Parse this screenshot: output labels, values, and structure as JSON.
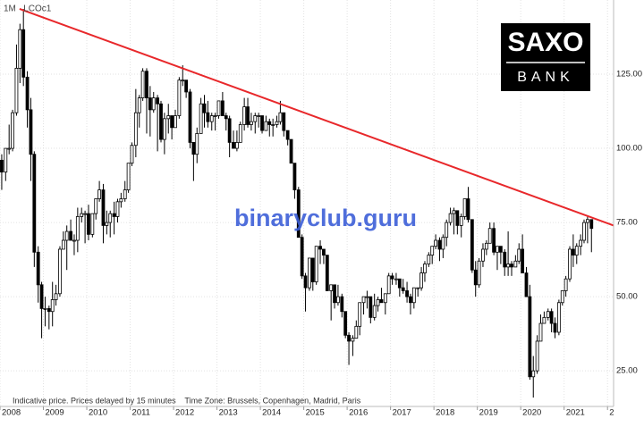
{
  "chart_data": {
    "type": "candlestick",
    "symbol": "1M   LCOc1",
    "note": "Indicative price. Prices delayed by 15 minutes    Time Zone: Brussels, Copenhagen, Madrid, Paris",
    "watermark": "binaryclub.guru",
    "logo": {
      "top": "SAXO",
      "bottom": "BANK"
    },
    "xlim": [
      2008,
      2022.14
    ],
    "ylim": [
      13,
      150
    ],
    "xticks": [
      2008,
      2009,
      2010,
      2011,
      2012,
      2013,
      2014,
      2015,
      2016,
      2017,
      2018,
      2019,
      2020,
      2021,
      {
        "value": 2022,
        "label": "2"
      }
    ],
    "yticks": [
      {
        "value": 25,
        "label": "25.00"
      },
      {
        "value": 50,
        "label": "50.00"
      },
      {
        "value": 75,
        "label": "75.00"
      },
      {
        "value": 100,
        "label": "100.00"
      },
      {
        "value": 125,
        "label": "125.00"
      }
    ],
    "grid": true,
    "up_color": "#ffffff",
    "down_color": "#000000",
    "trendline": {
      "x": [
        2008.45,
        2022.14
      ],
      "y": [
        147,
        74
      ],
      "color": "#e8282b"
    },
    "x": [
      2008.04,
      2008.13,
      2008.21,
      2008.29,
      2008.38,
      2008.46,
      2008.54,
      2008.63,
      2008.71,
      2008.79,
      2008.88,
      2008.96,
      2009.04,
      2009.13,
      2009.21,
      2009.29,
      2009.38,
      2009.46,
      2009.54,
      2009.63,
      2009.71,
      2009.79,
      2009.88,
      2009.96,
      2010.04,
      2010.13,
      2010.21,
      2010.29,
      2010.38,
      2010.46,
      2010.54,
      2010.63,
      2010.71,
      2010.79,
      2010.88,
      2010.96,
      2011.04,
      2011.13,
      2011.21,
      2011.29,
      2011.38,
      2011.46,
      2011.54,
      2011.63,
      2011.71,
      2011.79,
      2011.88,
      2011.96,
      2012.04,
      2012.13,
      2012.21,
      2012.29,
      2012.38,
      2012.46,
      2012.54,
      2012.63,
      2012.71,
      2012.79,
      2012.88,
      2012.96,
      2013.04,
      2013.13,
      2013.21,
      2013.29,
      2013.38,
      2013.46,
      2013.54,
      2013.63,
      2013.71,
      2013.79,
      2013.88,
      2013.96,
      2014.04,
      2014.13,
      2014.21,
      2014.29,
      2014.38,
      2014.46,
      2014.54,
      2014.63,
      2014.71,
      2014.79,
      2014.88,
      2014.96,
      2015.04,
      2015.13,
      2015.21,
      2015.29,
      2015.38,
      2015.46,
      2015.54,
      2015.63,
      2015.71,
      2015.79,
      2015.88,
      2015.96,
      2016.04,
      2016.13,
      2016.21,
      2016.29,
      2016.38,
      2016.46,
      2016.54,
      2016.63,
      2016.71,
      2016.79,
      2016.88,
      2016.96,
      2017.04,
      2017.13,
      2017.21,
      2017.29,
      2017.38,
      2017.46,
      2017.54,
      2017.63,
      2017.71,
      2017.79,
      2017.88,
      2017.96,
      2018.04,
      2018.13,
      2018.21,
      2018.29,
      2018.38,
      2018.46,
      2018.54,
      2018.63,
      2018.71,
      2018.79,
      2018.88,
      2018.96,
      2019.04,
      2019.13,
      2019.21,
      2019.29,
      2019.38,
      2019.46,
      2019.54,
      2019.63,
      2019.71,
      2019.79,
      2019.88,
      2019.96,
      2020.04,
      2020.13,
      2020.21,
      2020.29,
      2020.38,
      2020.46,
      2020.54,
      2020.63,
      2020.71,
      2020.79,
      2020.88,
      2020.96,
      2021.04,
      2021.13,
      2021.21,
      2021.29,
      2021.38,
      2021.46,
      2021.54,
      2021.63
    ],
    "ohlc": [
      [
        96,
        98,
        86,
        92
      ],
      [
        92,
        100,
        89,
        100
      ],
      [
        100,
        108,
        98,
        100
      ],
      [
        100,
        113,
        99,
        112
      ],
      [
        112,
        135,
        111,
        127
      ],
      [
        127,
        142,
        122,
        140
      ],
      [
        140,
        147,
        121,
        124
      ],
      [
        124,
        126,
        107,
        113
      ],
      [
        113,
        117,
        89,
        98
      ],
      [
        98,
        99,
        60,
        65
      ],
      [
        65,
        67,
        48,
        54
      ],
      [
        54,
        55,
        36,
        46
      ],
      [
        46,
        50,
        40,
        46
      ],
      [
        46,
        47,
        39,
        45
      ],
      [
        45,
        55,
        40,
        49
      ],
      [
        49,
        54,
        47,
        51
      ],
      [
        51,
        67,
        50,
        66
      ],
      [
        66,
        72,
        66,
        69
      ],
      [
        69,
        74,
        59,
        72
      ],
      [
        72,
        76,
        69,
        69
      ],
      [
        69,
        71,
        64,
        69
      ],
      [
        69,
        80,
        65,
        77
      ],
      [
        77,
        80,
        75,
        78
      ],
      [
        78,
        79,
        68,
        78
      ],
      [
        78,
        81,
        69,
        71
      ],
      [
        71,
        78,
        70,
        78
      ],
      [
        78,
        83,
        76,
        83
      ],
      [
        83,
        89,
        82,
        86
      ],
      [
        86,
        88,
        68,
        74
      ],
      [
        74,
        79,
        71,
        75
      ],
      [
        75,
        79,
        70,
        78
      ],
      [
        78,
        82,
        71,
        77
      ],
      [
        77,
        83,
        75,
        82
      ],
      [
        82,
        85,
        80,
        83
      ],
      [
        83,
        89,
        82,
        86
      ],
      [
        86,
        95,
        85,
        95
      ],
      [
        95,
        102,
        94,
        101
      ],
      [
        101,
        120,
        97,
        112
      ],
      [
        112,
        118,
        107,
        117
      ],
      [
        117,
        127,
        116,
        126
      ],
      [
        126,
        127,
        105,
        117
      ],
      [
        117,
        121,
        104,
        113
      ],
      [
        113,
        119,
        112,
        117
      ],
      [
        117,
        118,
        99,
        115
      ],
      [
        115,
        116,
        102,
        103
      ],
      [
        103,
        112,
        98,
        110
      ],
      [
        110,
        115,
        105,
        111
      ],
      [
        111,
        111,
        103,
        107
      ],
      [
        107,
        113,
        107,
        111
      ],
      [
        111,
        124,
        110,
        123
      ],
      [
        123,
        128,
        121,
        123
      ],
      [
        123,
        123,
        117,
        119
      ],
      [
        119,
        120,
        100,
        102
      ],
      [
        102,
        102,
        89,
        98
      ],
      [
        98,
        107,
        95,
        105
      ],
      [
        105,
        117,
        105,
        115
      ],
      [
        115,
        118,
        107,
        112
      ],
      [
        112,
        116,
        107,
        109
      ],
      [
        109,
        112,
        106,
        111
      ],
      [
        111,
        112,
        106,
        111
      ],
      [
        111,
        116,
        110,
        116
      ],
      [
        116,
        119,
        111,
        111
      ],
      [
        111,
        112,
        106,
        110
      ],
      [
        110,
        111,
        97,
        102
      ],
      [
        102,
        106,
        100,
        100
      ],
      [
        100,
        106,
        99,
        102
      ],
      [
        102,
        109,
        102,
        108
      ],
      [
        108,
        117,
        106,
        114
      ],
      [
        114,
        117,
        107,
        108
      ],
      [
        108,
        112,
        106,
        109
      ],
      [
        109,
        112,
        105,
        111
      ],
      [
        111,
        112,
        107,
        111
      ],
      [
        111,
        111,
        105,
        106
      ],
      [
        106,
        111,
        106,
        109
      ],
      [
        109,
        110,
        104,
        108
      ],
      [
        108,
        110,
        104,
        108
      ],
      [
        108,
        111,
        107,
        109
      ],
      [
        109,
        116,
        108,
        112
      ],
      [
        112,
        112,
        104,
        106
      ],
      [
        106,
        106,
        101,
        103
      ],
      [
        103,
        103,
        95,
        95
      ],
      [
        95,
        95,
        83,
        86
      ],
      [
        86,
        87,
        70,
        70
      ],
      [
        70,
        71,
        56,
        57
      ],
      [
        57,
        58,
        45,
        53
      ],
      [
        53,
        63,
        52,
        63
      ],
      [
        63,
        63,
        52,
        55
      ],
      [
        55,
        67,
        54,
        67
      ],
      [
        67,
        69,
        61,
        66
      ],
      [
        66,
        66,
        61,
        64
      ],
      [
        64,
        64,
        52,
        52
      ],
      [
        52,
        54,
        42,
        54
      ],
      [
        54,
        54,
        46,
        48
      ],
      [
        48,
        54,
        47,
        50
      ],
      [
        50,
        51,
        43,
        45
      ],
      [
        45,
        45,
        36,
        37
      ],
      [
        37,
        38,
        27,
        35
      ],
      [
        35,
        37,
        30,
        36
      ],
      [
        36,
        42,
        36,
        40
      ],
      [
        40,
        48,
        37,
        48
      ],
      [
        48,
        50,
        44,
        50
      ],
      [
        50,
        52,
        46,
        50
      ],
      [
        50,
        50,
        41,
        43
      ],
      [
        43,
        51,
        42,
        47
      ],
      [
        47,
        50,
        45,
        49
      ],
      [
        49,
        53,
        48,
        48
      ],
      [
        48,
        50,
        44,
        51
      ],
      [
        51,
        58,
        51,
        57
      ],
      [
        57,
        58,
        54,
        56
      ],
      [
        56,
        58,
        54,
        56
      ],
      [
        56,
        56,
        50,
        53
      ],
      [
        53,
        56,
        51,
        52
      ],
      [
        52,
        55,
        48,
        50
      ],
      [
        50,
        51,
        44,
        48
      ],
      [
        48,
        53,
        46,
        53
      ],
      [
        53,
        53,
        50,
        53
      ],
      [
        53,
        60,
        52,
        58
      ],
      [
        58,
        62,
        55,
        61
      ],
      [
        61,
        65,
        60,
        64
      ],
      [
        64,
        67,
        61,
        67
      ],
      [
        67,
        71,
        66,
        69
      ],
      [
        69,
        70,
        62,
        66
      ],
      [
        66,
        71,
        63,
        70
      ],
      [
        70,
        76,
        67,
        75
      ],
      [
        75,
        80,
        74,
        78
      ],
      [
        78,
        80,
        71,
        79
      ],
      [
        79,
        79,
        71,
        74
      ],
      [
        74,
        78,
        70,
        77
      ],
      [
        77,
        83,
        76,
        83
      ],
      [
        83,
        87,
        75,
        76
      ],
      [
        76,
        76,
        58,
        59
      ],
      [
        59,
        62,
        50,
        54
      ],
      [
        54,
        63,
        53,
        62
      ],
      [
        62,
        68,
        60,
        66
      ],
      [
        66,
        69,
        64,
        68
      ],
      [
        68,
        75,
        68,
        73
      ],
      [
        73,
        75,
        64,
        65
      ],
      [
        65,
        67,
        59,
        67
      ],
      [
        67,
        67,
        61,
        65
      ],
      [
        65,
        66,
        57,
        60
      ],
      [
        60,
        72,
        57,
        61
      ],
      [
        61,
        62,
        57,
        60
      ],
      [
        60,
        64,
        60,
        62
      ],
      [
        62,
        68,
        61,
        66
      ],
      [
        66,
        71,
        58,
        58
      ],
      [
        58,
        60,
        50,
        50
      ],
      [
        50,
        54,
        22,
        23
      ],
      [
        23,
        30,
        16,
        25
      ],
      [
        25,
        37,
        24,
        35
      ],
      [
        35,
        44,
        35,
        41
      ],
      [
        41,
        45,
        41,
        43
      ],
      [
        43,
        46,
        42,
        45
      ],
      [
        45,
        46,
        38,
        41
      ],
      [
        41,
        43,
        36,
        38
      ],
      [
        38,
        49,
        37,
        48
      ],
      [
        48,
        52,
        47,
        52
      ],
      [
        52,
        57,
        50,
        56
      ],
      [
        56,
        67,
        55,
        66
      ],
      [
        66,
        71,
        60,
        64
      ],
      [
        64,
        68,
        61,
        67
      ],
      [
        67,
        71,
        64,
        69
      ],
      [
        69,
        76,
        68,
        75
      ],
      [
        75,
        77,
        68,
        76
      ],
      [
        76,
        76,
        65,
        73
      ]
    ]
  }
}
